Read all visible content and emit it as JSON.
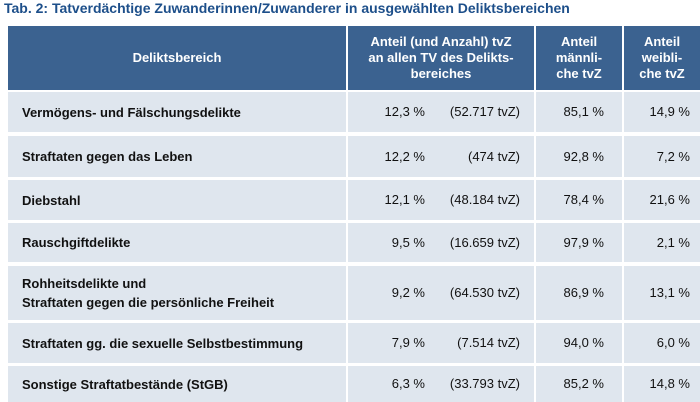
{
  "title": "Tab. 2:  Tatverdächtige Zuwanderinnen/Zuwanderer in ausgewählten Deliktsbereichen",
  "table": {
    "header": [
      [
        "Deliktsbereich"
      ],
      [
        "Anteil (und Anzahl) tvZ",
        "an allen TV des Delikts-",
        "bereiches"
      ],
      [
        "Anteil",
        "männli-",
        "che tvZ"
      ],
      [
        "Anteil",
        "weibli-",
        "che tvZ"
      ]
    ],
    "rows": [
      [
        [
          "Vermögens- und Fälschungsdelikte"
        ],
        "12,3 %",
        "(52.717 tvZ)",
        "85,1 %",
        "14,9 %"
      ],
      [
        [
          "Straftaten gegen das Leben"
        ],
        "12,2 %",
        "(474 tvZ)",
        "92,8 %",
        "7,2 %"
      ],
      [
        [
          "Diebstahl"
        ],
        "12,1 %",
        "(48.184 tvZ)",
        "78,4 %",
        "21,6 %"
      ],
      [
        [
          "Rauschgiftdelikte"
        ],
        "9,5 %",
        "(16.659 tvZ)",
        "97,9 %",
        "2,1 %"
      ],
      [
        [
          "Rohheitsdelikte und",
          "Straftaten gegen die persönliche Freiheit"
        ],
        "9,2 %",
        "(64.530 tvZ)",
        "86,9 %",
        "13,1 %"
      ],
      [
        [
          "Straftaten gg. die sexuelle Selbstbestimmung"
        ],
        "7,9 %",
        "(7.514 tvZ)",
        "94,0 %",
        "6,0 %"
      ],
      [
        [
          "Sonstige Straftatbestände (StGB)"
        ],
        "6,3 %",
        "(33.793 tvZ)",
        "85,2 %",
        "14,8 %"
      ]
    ]
  }
}
